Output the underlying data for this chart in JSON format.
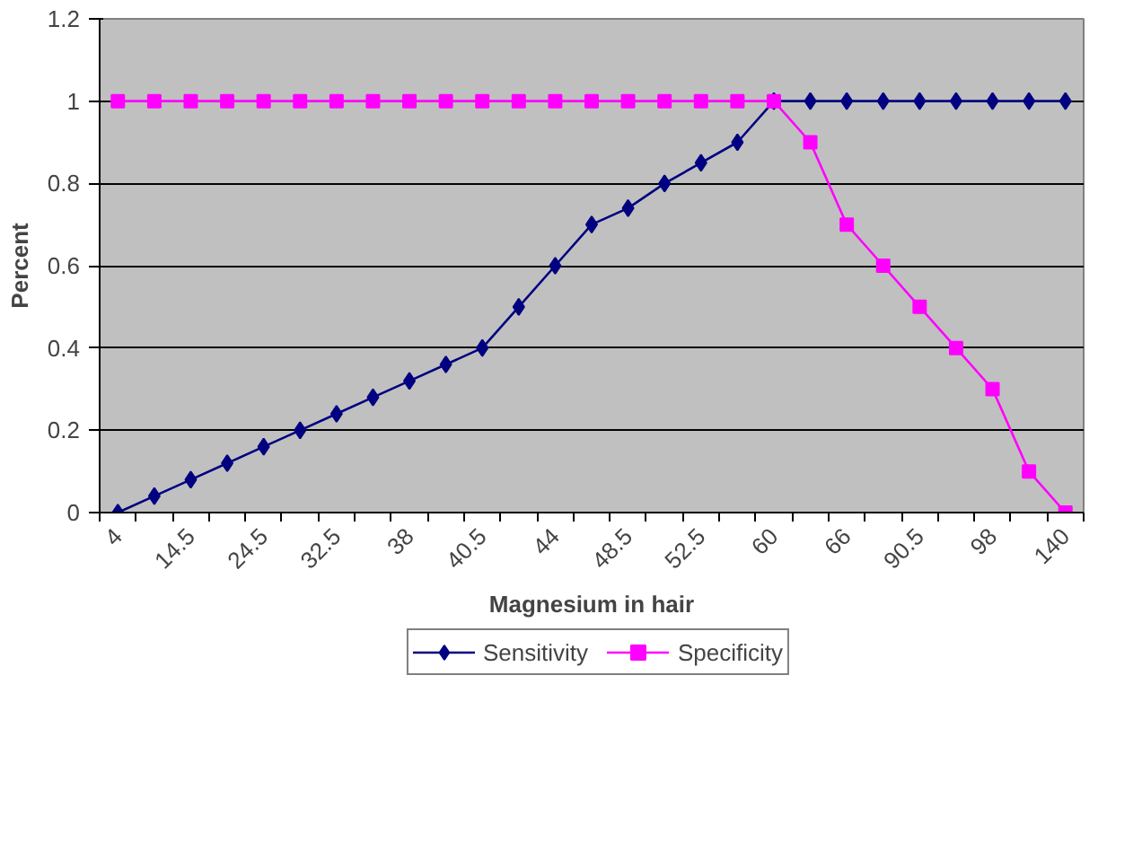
{
  "chart_data": {
    "type": "line",
    "xlabel": "Magnesium in hair",
    "ylabel": "Percent",
    "categories": [
      "4",
      null,
      "14.5",
      null,
      "24.5",
      null,
      "32.5",
      null,
      "38",
      null,
      "40.5",
      null,
      "44",
      null,
      "48.5",
      null,
      "52.5",
      null,
      "60",
      null,
      "66",
      null,
      "90.5",
      null,
      "98",
      null,
      "140"
    ],
    "series": [
      {
        "name": "Sensitivity",
        "color": "#000080",
        "marker": "diamond",
        "values": [
          0,
          0.04,
          0.08,
          0.12,
          0.16,
          0.2,
          0.24,
          0.28,
          0.32,
          0.36,
          0.4,
          0.5,
          0.6,
          0.7,
          0.74,
          0.8,
          0.85,
          0.9,
          1,
          1,
          1,
          1,
          1,
          1,
          1,
          1,
          1
        ]
      },
      {
        "name": "Specificity",
        "color": "#ff00ff",
        "marker": "square",
        "values": [
          1,
          1,
          1,
          1,
          1,
          1,
          1,
          1,
          1,
          1,
          1,
          1,
          1,
          1,
          1,
          1,
          1,
          1,
          1,
          0.9,
          0.7,
          0.6,
          0.5,
          0.4,
          0.3,
          0.1,
          0
        ]
      }
    ],
    "ylim": [
      0,
      1.2
    ],
    "yticks": [
      0,
      0.2,
      0.4,
      0.6,
      0.8,
      1,
      1.2
    ],
    "grid": "y",
    "legend": "bottom"
  }
}
